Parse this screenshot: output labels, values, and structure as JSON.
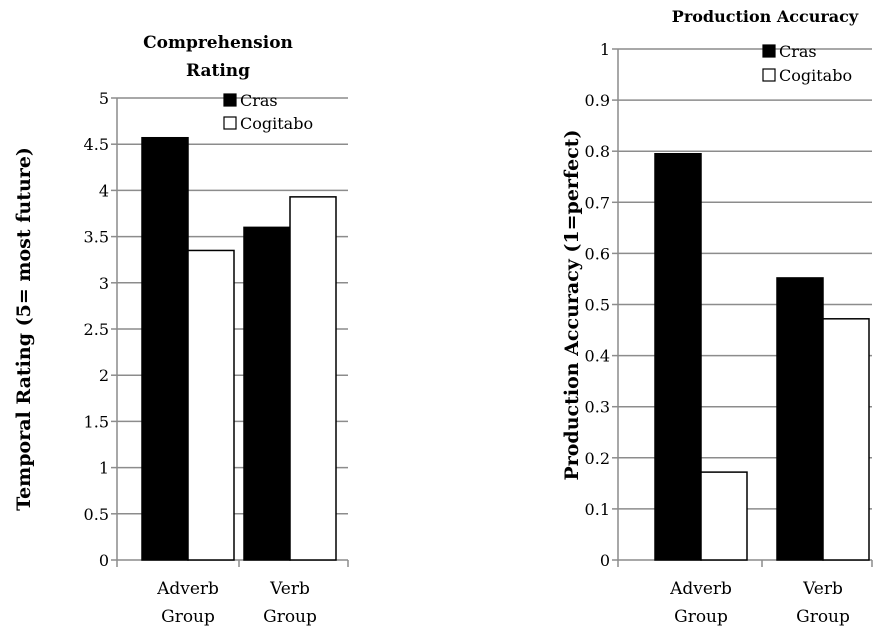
{
  "chart_data": [
    {
      "type": "bar",
      "title": "Comprehension Rating",
      "title_lines": [
        "Comprehension",
        "Rating"
      ],
      "xlabel": "",
      "ylabel": "Temporal Rating (5= most future)",
      "ylim": [
        0,
        5
      ],
      "yticks": [
        "0",
        "0.5",
        "1",
        "1.5",
        "2",
        "2.5",
        "3",
        "3.5",
        "4",
        "4.5",
        "5"
      ],
      "categories": [
        "Adverb Group",
        "Verb Group"
      ],
      "category_lines": [
        [
          "Adverb",
          "Group"
        ],
        [
          "Verb",
          "Group"
        ]
      ],
      "grid": true,
      "legend_position": "top-right",
      "series": [
        {
          "name": "Cras",
          "values": [
            4.57,
            3.6
          ],
          "color": "#000000"
        },
        {
          "name": "Cogitabo",
          "values": [
            3.35,
            3.93
          ],
          "color": "#ffffff"
        }
      ]
    },
    {
      "type": "bar",
      "title": "Production Accuracy",
      "title_lines": [
        "Production Accuracy"
      ],
      "xlabel": "",
      "ylabel": "Production Accuracy (1=perfect)",
      "ylim": [
        0,
        1
      ],
      "yticks": [
        "0",
        "0.1",
        "0.2",
        "0.3",
        "0.4",
        "0.5",
        "0.6",
        "0.7",
        "0.8",
        "0.9",
        "1"
      ],
      "categories": [
        "Adverb Group",
        "Verb Group"
      ],
      "category_lines": [
        [
          "Adverb",
          "Group"
        ],
        [
          "Verb",
          "Group"
        ]
      ],
      "grid": true,
      "legend_position": "top-right",
      "series": [
        {
          "name": "Cras",
          "values": [
            0.795,
            0.552
          ],
          "color": "#000000"
        },
        {
          "name": "Cogitabo",
          "values": [
            0.172,
            0.472
          ],
          "color": "#ffffff"
        }
      ]
    }
  ]
}
